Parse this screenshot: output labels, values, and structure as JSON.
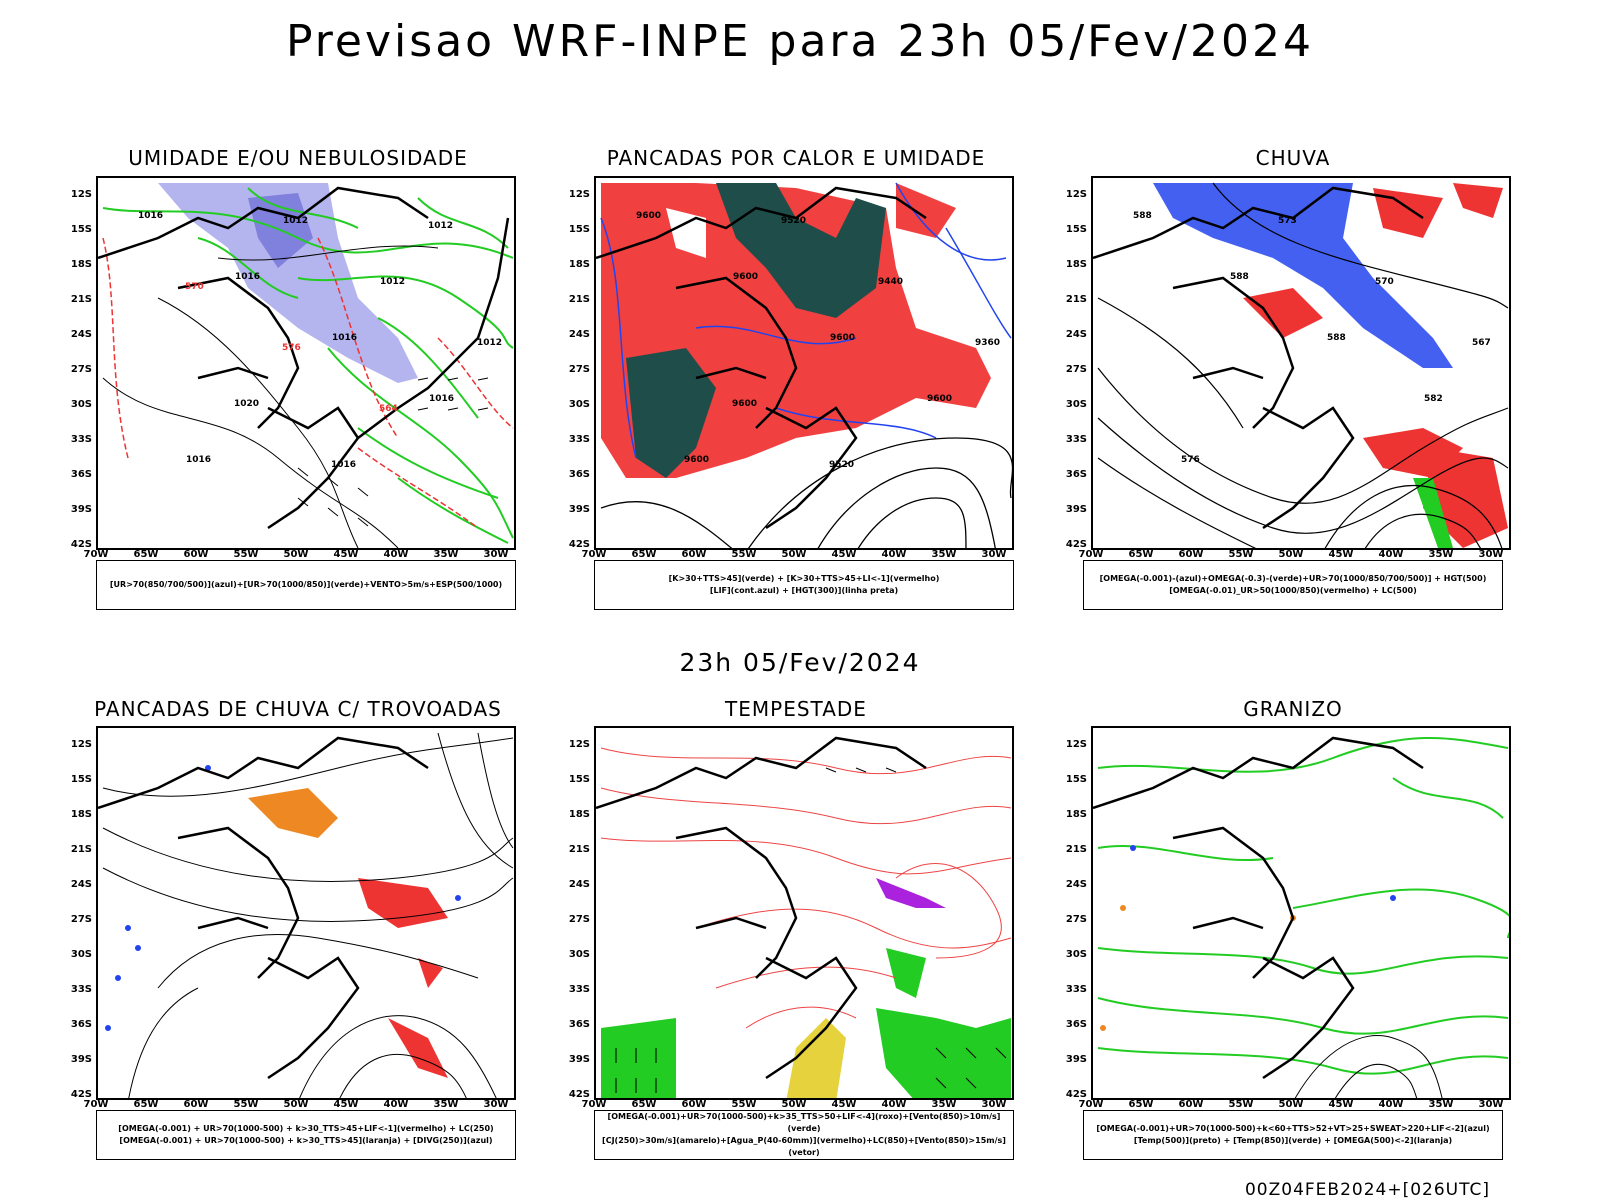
{
  "header": {
    "title": "Previsao WRF-INPE  para 23h 05/Fev/2024"
  },
  "middle_title": "23h 05/Fev/2024",
  "footer": "00Z04FEB2024+[026UTC]",
  "axes": {
    "lat_labels": [
      "12S",
      "15S",
      "18S",
      "21S",
      "24S",
      "27S",
      "30S",
      "33S",
      "36S",
      "39S",
      "42S"
    ],
    "lon_labels": [
      "70W",
      "65W",
      "60W",
      "55W",
      "50W",
      "45W",
      "40W",
      "35W",
      "30W"
    ]
  },
  "panels": [
    {
      "title": "UMIDADE E/OU NEBULOSIDADE",
      "legend": [
        "[UR>70(850/700/500)](azul)+[UR>70(1000/850)](verde)+VENTO>5m/s+ESP(500/1000)"
      ],
      "contour_labels": [
        "1016",
        "1016",
        "1016",
        "1016",
        "1016",
        "1012",
        "1012",
        "1012",
        "1020",
        "1016",
        "1012",
        "570",
        "576",
        "564"
      ],
      "colors": {
        "blue": "#b4b4ee",
        "green": "#22cc22",
        "red": "#ee3333"
      }
    },
    {
      "title": "PANCADAS POR CALOR E UMIDADE",
      "legend": [
        "[K>30+TTS>45](verde) + [K>30+TTS>45+LI<-1](vermelho)",
        "[LIF](cont.azul) + [HGT(300)](linha preta)"
      ],
      "contour_labels": [
        "9600",
        "9600",
        "9600",
        "9600",
        "9600",
        "9520",
        "9440",
        "9360",
        "9600",
        "9520"
      ],
      "colors": {
        "dark": "#1f4d4a",
        "red": "#f04040",
        "blue": "#2244ee"
      }
    },
    {
      "title": "CHUVA",
      "legend": [
        "[OMEGA(-0.001)-(azul)+OMEGA(-0.3)-(verde)+UR>70(1000/850/700/500)] + HGT(500)",
        "[OMEGA(-0.01)_UR>50(1000/850)(vermelho) + LC(500)"
      ],
      "contour_labels": [
        "588",
        "588",
        "588",
        "582",
        "576",
        "573",
        "570",
        "567"
      ],
      "colors": {
        "blue": "#2244ee",
        "red": "#ee3333",
        "green": "#22cc22"
      }
    },
    {
      "title": "PANCADAS DE CHUVA C/ TROVOADAS",
      "legend": [
        "[OMEGA(-0.001) + UR>70(1000-500) + k>30_TTS>45+LIF<-1](vermelho) + LC(250)",
        "[OMEGA(-0.001) + UR>70(1000-500) + k>30_TTS>45](laranja) + [DIVG(250)](azul)"
      ],
      "contour_labels": [],
      "colors": {
        "orange": "#ee8822",
        "red": "#ee3333",
        "blue": "#2244ee"
      }
    },
    {
      "title": "TEMPESTADE",
      "legend": [
        "[OMEGA(-0.001)+UR>70(1000-500)+k>35_TTS>50+LIF<-4](roxo)+[Vento(850)>10m/s](verde)",
        "[CJ(250)>30m/s](amarelo)+[Agua_P(40-60mm)](vermelho)+LC(850)+[Vento(850)>15m/s](vetor)"
      ],
      "contour_labels": [],
      "colors": {
        "green": "#22cc22",
        "yellow": "#e6d23c",
        "red": "#ee4444",
        "purple": "#aa22dd"
      }
    },
    {
      "title": "GRANIZO",
      "legend": [
        "[OMEGA(-0.001)+UR>70(1000-500)+k<60+TTS>52+VT>25+SWEAT>220+LIF<-2](azul)",
        "[Temp(500)](preto) + [Temp(850)](verde) + [OMEGA(500)<-2](laranja)"
      ],
      "contour_labels": [],
      "colors": {
        "green": "#22cc22",
        "orange": "#ee8822",
        "blue": "#2244ee"
      }
    }
  ]
}
